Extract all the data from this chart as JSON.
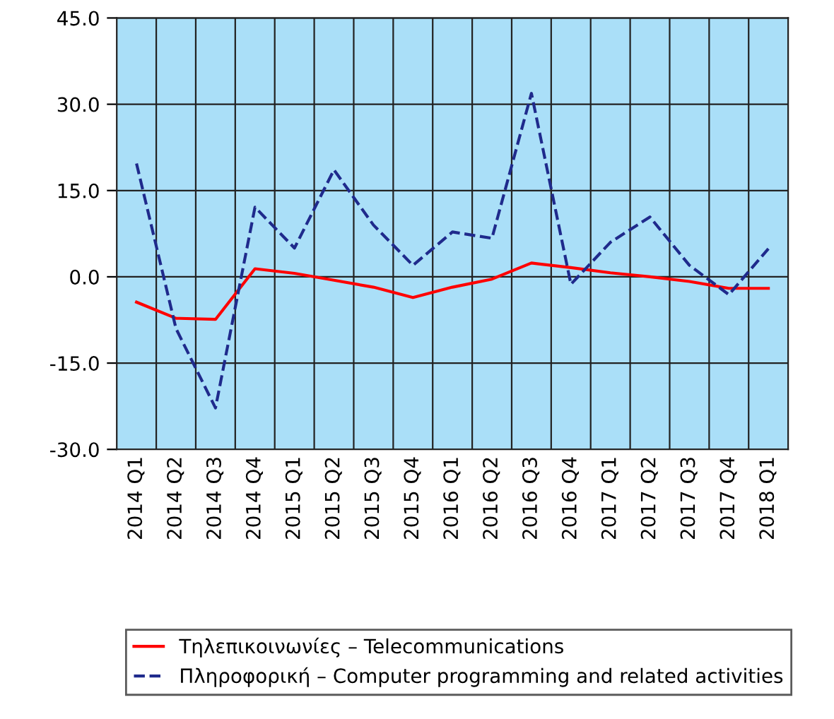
{
  "chart_data": {
    "type": "line",
    "categories": [
      "2014 Q1",
      "2014 Q2",
      "2014 Q3",
      "2014 Q4",
      "2015 Q1",
      "2015 Q2",
      "2015 Q3",
      "2015 Q4",
      "2016 Q1",
      "2016 Q2",
      "2016 Q3",
      "2016 Q4",
      "2017 Q1",
      "2017 Q2",
      "2017 Q3",
      "2017 Q4",
      "2018 Q1"
    ],
    "series": [
      {
        "name": "Τηλεπικοινωνίες – Telecommunications",
        "color": "#ff0000",
        "line_style": "solid",
        "values": [
          -4.4,
          -7.2,
          -7.4,
          1.4,
          0.6,
          -0.6,
          -1.8,
          -3.6,
          -1.8,
          -0.4,
          2.4,
          1.6,
          0.7,
          0.0,
          -0.8,
          -2.0,
          -2.0
        ]
      },
      {
        "name": "Πληροφορική – Computer programming and related activities",
        "color": "#1f2a8c",
        "line_style": "dashed",
        "values": [
          19.7,
          -9.0,
          -22.8,
          12.1,
          5.0,
          18.6,
          9.0,
          2.0,
          7.8,
          6.7,
          31.9,
          -1.3,
          6.0,
          10.4,
          2.0,
          -3.1,
          4.9
        ]
      }
    ],
    "ylim": [
      -30,
      45
    ],
    "yticks": [
      {
        "value": -30,
        "label": "-30.0"
      },
      {
        "value": -15,
        "label": "-15.0"
      },
      {
        "value": 0,
        "label": "0.0"
      },
      {
        "value": 15,
        "label": "15.0"
      },
      {
        "value": 30,
        "label": "30.0"
      },
      {
        "value": 45,
        "label": "45.0"
      }
    ],
    "grid": true,
    "legend": "bottom",
    "marker": "none"
  }
}
